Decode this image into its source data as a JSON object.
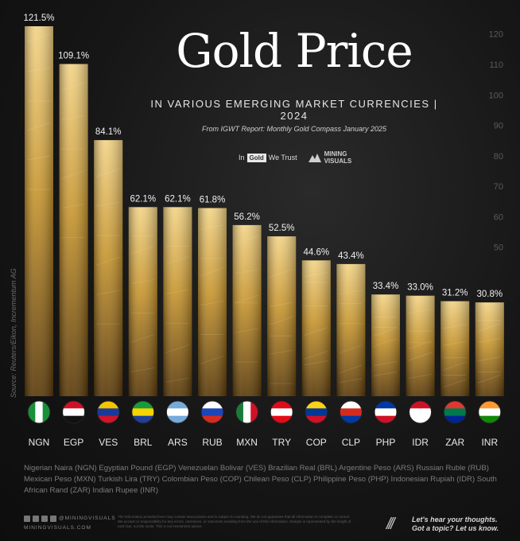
{
  "header": {
    "title": "Gold Price",
    "subtitle": "IN VARIOUS EMERGING MARKET CURRENCIES  |  2024",
    "source_line": "From IGWT Report: Monthly Gold Compass January 2025",
    "logo_ingold_left": "In",
    "logo_ingold_box": "Gold",
    "logo_ingold_right": "We Trust",
    "logo_mv_line1": "MINING",
    "logo_mv_line2": "VISUALS"
  },
  "side_source": "Source: Reuters/Eikon, Incrementum AG",
  "legend_text": "Nigerian Naira (NGN) Egyptian Pound (EGP) Venezuelan Bolivar (VES) Brazilian Real (BRL) Argentine Peso (ARS) Russian Ruble (RUB) Mexican Peso (MXN) Turkish Lira (TRY) Colombian Peso (COP) Chilean Peso (CLP) Philippine Peso (PHP) Indonesian Rupiah (IDR) South African Rand (ZAR) Indian Rupee (INR)",
  "footer": {
    "site": "@MININGVISUALS",
    "url": "MININGVISUALS.COM",
    "disclaimer": "The information provided here may contain inaccuracies and is subject to rounding. We do not guarantee that all information is complete or correct. We accept no responsibility for any errors, omissions, or outcomes resulting from the use of this information. Sample is represented by the length of each bar, not the scale. This is not investment advice.",
    "slashes": "///",
    "cta_line1": "Let's hear your thoughts.",
    "cta_line2": "Got a topic? Let us know."
  },
  "chart_data": {
    "type": "bar",
    "categories": [
      "NGN",
      "EGP",
      "VES",
      "BRL",
      "ARS",
      "RUB",
      "MXN",
      "TRY",
      "COP",
      "CLP",
      "PHP",
      "IDR",
      "ZAR",
      "INR"
    ],
    "values": [
      121.5,
      109.1,
      84.1,
      62.1,
      62.1,
      61.8,
      56.2,
      52.5,
      44.6,
      43.4,
      33.4,
      33.0,
      31.2,
      30.8
    ],
    "value_labels": [
      "121.5%",
      "109.1%",
      "84.1%",
      "62.1%",
      "62.1%",
      "61.8%",
      "56.2%",
      "52.5%",
      "44.6%",
      "43.4%",
      "33.4%",
      "33.0%",
      "31.2%",
      "30.8%"
    ],
    "yticks": [
      "120",
      "110",
      "100",
      "90",
      "80",
      "70",
      "60",
      "50"
    ],
    "ylim": [
      0,
      125
    ],
    "grid": false,
    "bar_colors": [
      "#f3d486",
      "#c8962f",
      "#5a3a0a"
    ],
    "flag_colors": {
      "NGN": [
        "#1a8f3a",
        "#ffffff",
        "#1a8f3a"
      ],
      "EGP": [
        "#ce1126",
        "#ffffff",
        "#111111"
      ],
      "VES": [
        "#f4c400",
        "#1a3a9a",
        "#cf142b"
      ],
      "BRL": [
        "#1a9a3a",
        "#f5d400",
        "#1e3f9a"
      ],
      "ARS": [
        "#75aadb",
        "#ffffff",
        "#75aadb"
      ],
      "RUB": [
        "#ffffff",
        "#1c47b8",
        "#d52b1e"
      ],
      "MXN": [
        "#1a7a3a",
        "#ffffff",
        "#ce1126"
      ],
      "TRY": [
        "#e30a17",
        "#ffffff",
        "#e30a17"
      ],
      "COP": [
        "#fcd116",
        "#003893",
        "#ce1126"
      ],
      "CLP": [
        "#ffffff",
        "#d52b1e",
        "#0039a6"
      ],
      "PHP": [
        "#0038a8",
        "#ffffff",
        "#ce1126"
      ],
      "IDR": [
        "#ce1126",
        "#ffffff",
        "#ffffff"
      ],
      "ZAR": [
        "#de3831",
        "#007a4d",
        "#002395"
      ],
      "INR": [
        "#ff9933",
        "#ffffff",
        "#138808"
      ]
    }
  }
}
